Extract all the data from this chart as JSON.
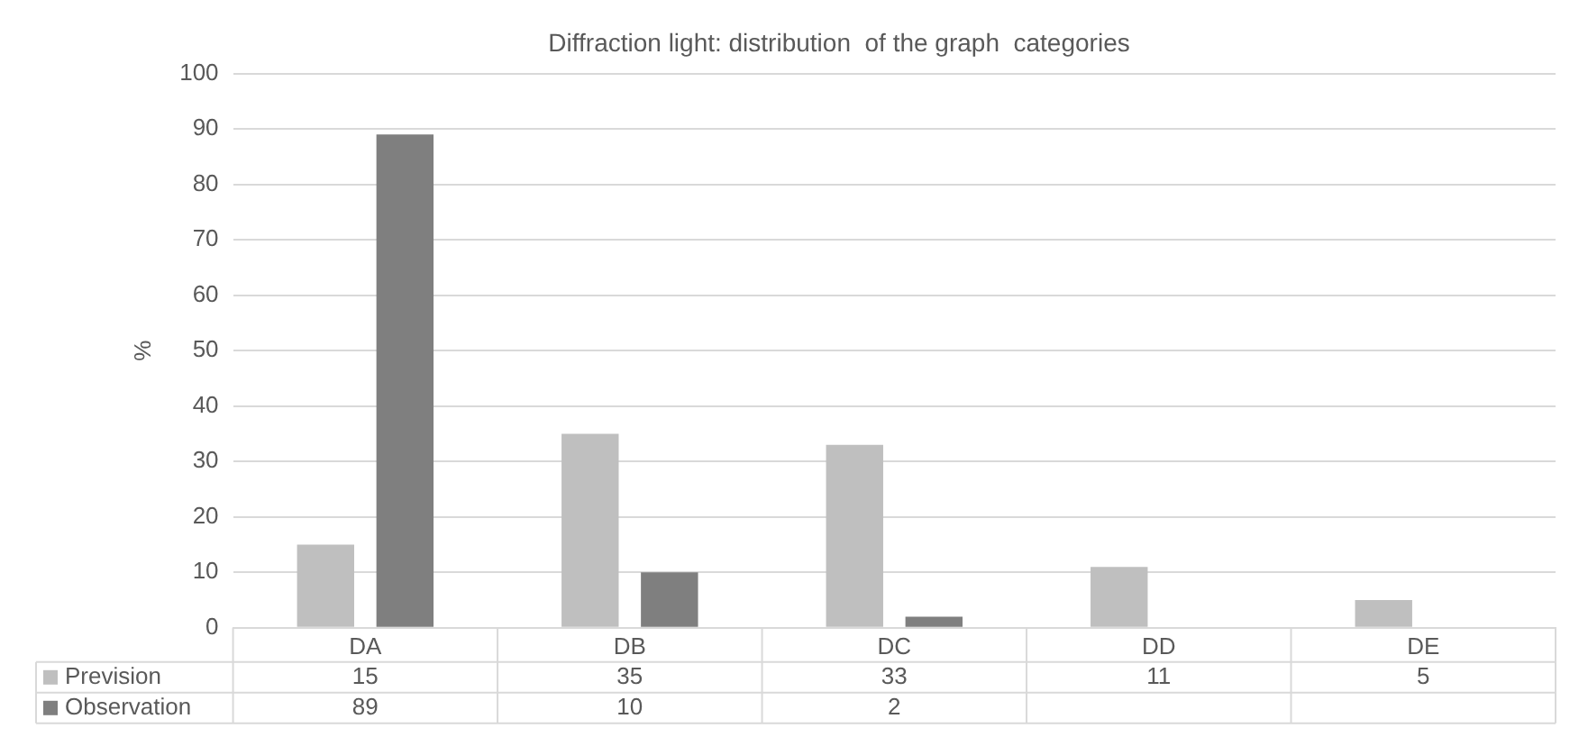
{
  "chart_data": {
    "type": "bar",
    "title": "Diffraction light: distribution  of the graph  categories",
    "ylabel": "%",
    "categories": [
      "DA",
      "DB",
      "DC",
      "DD",
      "DE"
    ],
    "series": [
      {
        "name": "Prevision",
        "color": "#bfbfbf",
        "values": [
          15,
          35,
          33,
          11,
          5
        ]
      },
      {
        "name": "Observation",
        "color": "#7f7f7f",
        "values": [
          89,
          10,
          2,
          null,
          null
        ]
      }
    ],
    "ylim": [
      0,
      100
    ],
    "yticks": [
      0,
      10,
      20,
      30,
      40,
      50,
      60,
      70,
      80,
      90,
      100
    ],
    "grid": "y",
    "data_labels": true,
    "legend": "bottom"
  }
}
